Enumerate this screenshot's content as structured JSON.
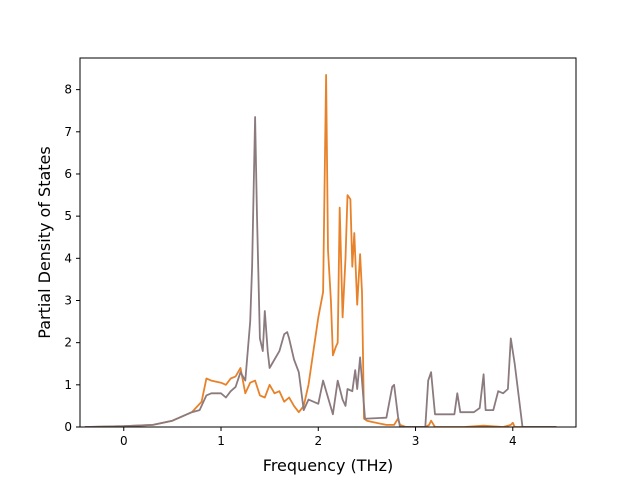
{
  "chart_data": {
    "type": "line",
    "title": "",
    "xlabel": "Frequency (THz)",
    "ylabel": "Partial Density of States",
    "xlim": [
      -0.45,
      4.65
    ],
    "ylim": [
      0,
      8.75
    ],
    "xticks": [
      "0",
      "1",
      "2",
      "3",
      "4"
    ],
    "yticks": [
      "0",
      "1",
      "2",
      "3",
      "4",
      "5",
      "6",
      "7",
      "8"
    ],
    "grid": false,
    "legend": "none",
    "series": [
      {
        "color": "#e8822a",
        "x": [
          -0.4,
          0.0,
          0.3,
          0.5,
          0.7,
          0.8,
          0.85,
          0.9,
          1.0,
          1.05,
          1.1,
          1.15,
          1.2,
          1.25,
          1.3,
          1.35,
          1.4,
          1.45,
          1.5,
          1.55,
          1.6,
          1.65,
          1.7,
          1.75,
          1.8,
          1.85,
          1.9,
          1.95,
          2.0,
          2.05,
          2.08,
          2.1,
          2.13,
          2.15,
          2.18,
          2.2,
          2.22,
          2.25,
          2.28,
          2.3,
          2.33,
          2.35,
          2.37,
          2.4,
          2.43,
          2.45,
          2.47,
          2.5,
          2.55,
          2.7,
          2.78,
          2.82,
          2.84,
          2.9,
          3.1,
          3.14,
          3.16,
          3.2,
          3.5,
          3.7,
          3.9,
          3.98,
          4.0,
          4.02,
          4.3,
          4.45
        ],
        "values": [
          0,
          0.02,
          0.05,
          0.15,
          0.35,
          0.6,
          1.15,
          1.1,
          1.05,
          1.0,
          1.15,
          1.2,
          1.4,
          0.8,
          1.05,
          1.1,
          0.75,
          0.7,
          1.0,
          0.8,
          0.85,
          0.6,
          0.7,
          0.5,
          0.35,
          0.5,
          1.0,
          1.8,
          2.6,
          3.2,
          8.35,
          4.2,
          3.0,
          1.7,
          1.9,
          2.0,
          5.2,
          2.6,
          4.0,
          5.5,
          5.4,
          3.8,
          4.6,
          2.9,
          4.1,
          3.2,
          0.2,
          0.15,
          0.12,
          0.05,
          0.05,
          0.2,
          0.05,
          0.0,
          0.0,
          0.05,
          0.15,
          0.0,
          0.0,
          0.03,
          0.0,
          0.05,
          0.1,
          0.0,
          0.0,
          0.0
        ]
      },
      {
        "color": "#8b7b7e",
        "x": [
          -0.4,
          0.0,
          0.3,
          0.5,
          0.7,
          0.78,
          0.85,
          0.9,
          1.0,
          1.05,
          1.1,
          1.15,
          1.2,
          1.25,
          1.3,
          1.32,
          1.35,
          1.37,
          1.4,
          1.43,
          1.45,
          1.48,
          1.5,
          1.55,
          1.6,
          1.65,
          1.68,
          1.7,
          1.75,
          1.8,
          1.85,
          1.9,
          2.0,
          2.05,
          2.1,
          2.15,
          2.2,
          2.25,
          2.28,
          2.3,
          2.35,
          2.38,
          2.4,
          2.43,
          2.45,
          2.48,
          2.5,
          2.7,
          2.76,
          2.78,
          2.82,
          2.84,
          3.1,
          3.13,
          3.16,
          3.2,
          3.4,
          3.43,
          3.46,
          3.6,
          3.66,
          3.7,
          3.72,
          3.8,
          3.85,
          3.9,
          3.95,
          3.98,
          4.02,
          4.1,
          4.45
        ],
        "values": [
          0,
          0.02,
          0.05,
          0.15,
          0.35,
          0.4,
          0.75,
          0.8,
          0.8,
          0.7,
          0.85,
          0.95,
          1.3,
          1.1,
          2.5,
          3.8,
          7.35,
          5.0,
          2.1,
          1.8,
          2.75,
          1.8,
          1.4,
          1.6,
          1.8,
          2.2,
          2.25,
          2.1,
          1.6,
          1.3,
          0.4,
          0.65,
          0.55,
          1.1,
          0.7,
          0.3,
          1.1,
          0.65,
          0.5,
          0.9,
          0.85,
          1.35,
          0.9,
          1.65,
          1.1,
          0.2,
          0.2,
          0.22,
          0.95,
          1.0,
          0.25,
          0.0,
          0.0,
          1.1,
          1.3,
          0.3,
          0.3,
          0.8,
          0.35,
          0.35,
          0.45,
          1.25,
          0.4,
          0.4,
          0.85,
          0.8,
          0.9,
          2.1,
          1.5,
          0.0,
          0.0
        ]
      }
    ]
  }
}
